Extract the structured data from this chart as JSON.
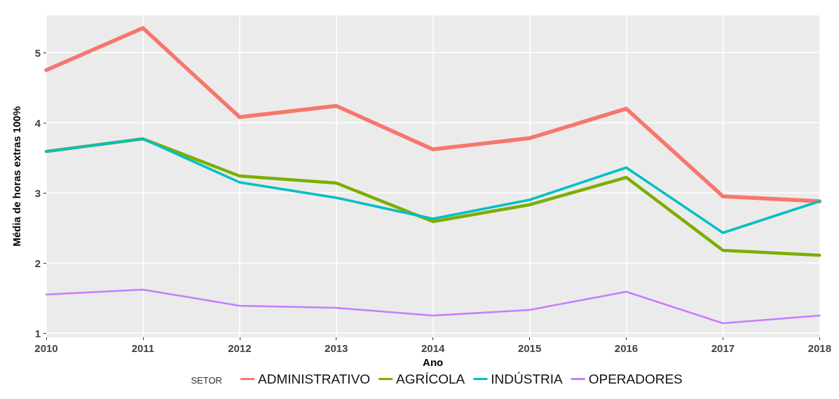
{
  "chart_data": {
    "type": "line",
    "xlabel": "Ano",
    "ylabel": "Média de horas extras 100%",
    "legend_title": "SETOR",
    "categories": [
      "2010",
      "2011",
      "2012",
      "2013",
      "2014",
      "2015",
      "2016",
      "2017",
      "2018"
    ],
    "series": [
      {
        "name": "ADMINISTRATIVO",
        "color": "#f8766d",
        "values": [
          4.75,
          5.35,
          4.08,
          4.24,
          3.62,
          3.78,
          4.2,
          2.95,
          2.88
        ]
      },
      {
        "name": "AGRÍCOLA",
        "color": "#7cae00",
        "values": [
          3.59,
          3.77,
          3.24,
          3.14,
          2.59,
          2.83,
          3.22,
          2.18,
          2.11
        ]
      },
      {
        "name": "INDÚSTRIA",
        "color": "#00bfc4",
        "values": [
          3.59,
          3.77,
          3.15,
          2.93,
          2.63,
          2.9,
          3.36,
          2.43,
          2.88
        ]
      },
      {
        "name": "OPERADORES",
        "color": "#c77cff",
        "values": [
          1.55,
          1.62,
          1.39,
          1.36,
          1.25,
          1.33,
          1.59,
          1.14,
          1.25
        ]
      }
    ],
    "ylim": [
      0.94,
      5.53
    ],
    "yticks": [
      1,
      2,
      3,
      4,
      5
    ],
    "grid": true,
    "legend": "bottom",
    "marker": "none",
    "line_style": "solid"
  }
}
